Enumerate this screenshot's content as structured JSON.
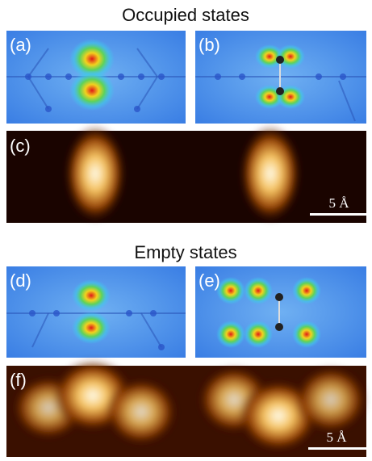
{
  "sections": [
    {
      "title": "Occupied states",
      "panels": [
        {
          "label": "(a)"
        },
        {
          "label": "(b)"
        },
        {
          "label": "(c)",
          "scale_bar": "5 Å"
        }
      ]
    },
    {
      "title": "Empty states",
      "panels": [
        {
          "label": "(d)"
        },
        {
          "label": "(e)"
        },
        {
          "label": "(f)",
          "scale_bar": "5 Å"
        }
      ]
    }
  ]
}
